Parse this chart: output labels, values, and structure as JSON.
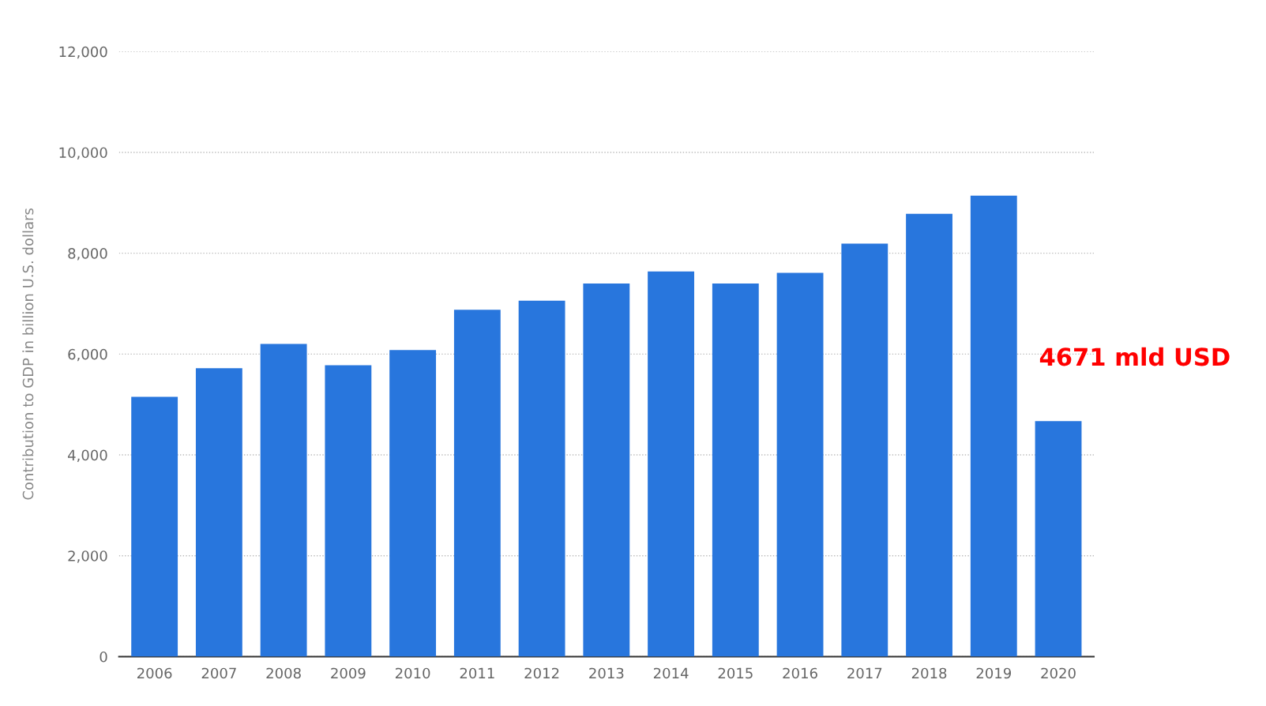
{
  "chart_data": {
    "type": "bar",
    "ylabel": "Contribution to GDP in billion U.S. dollars",
    "categories": [
      "2006",
      "2007",
      "2008",
      "2009",
      "2010",
      "2011",
      "2012",
      "2013",
      "2014",
      "2015",
      "2016",
      "2017",
      "2018",
      "2019",
      "2020"
    ],
    "values": [
      5150,
      5720,
      6200,
      5780,
      6080,
      6880,
      7060,
      7400,
      7640,
      7400,
      7610,
      8190,
      8780,
      9140,
      4671
    ],
    "color": "#2876dd",
    "ylim": [
      0,
      12000
    ],
    "yticks": [
      {
        "value": 0,
        "label": "0"
      },
      {
        "value": 2000,
        "label": "2,000"
      },
      {
        "value": 4000,
        "label": "4,000"
      },
      {
        "value": 6000,
        "label": "6,000"
      },
      {
        "value": 8000,
        "label": "8,000"
      },
      {
        "value": 10000,
        "label": "10,000"
      },
      {
        "value": 12000,
        "label": "12,000"
      }
    ],
    "grid": "y",
    "annotations": [
      {
        "text": "4671 mld USD",
        "x": "2020",
        "y": 4671
      }
    ]
  }
}
